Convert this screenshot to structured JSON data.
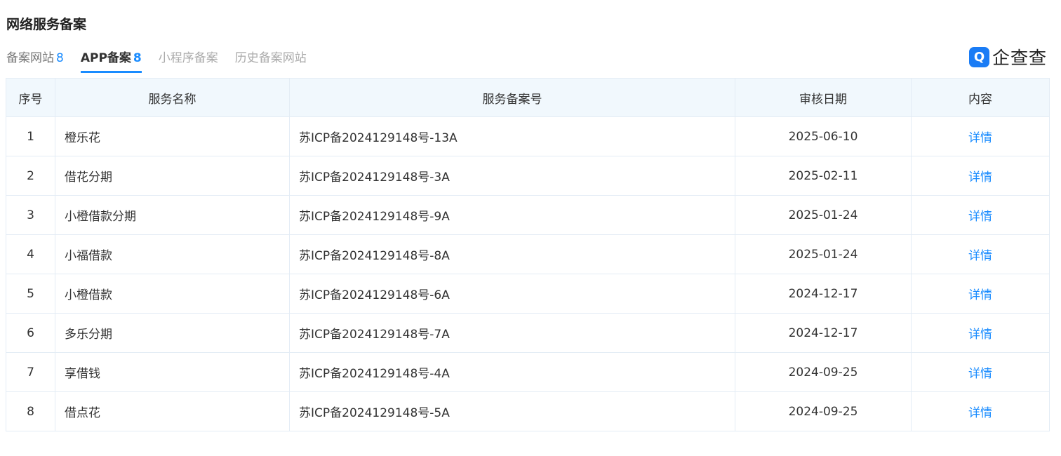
{
  "title": "网络服务备案",
  "tabs": [
    {
      "label": "备案网站",
      "count": "8"
    },
    {
      "label": "APP备案",
      "count": "8"
    },
    {
      "label": "小程序备案"
    },
    {
      "label": "历史备案网站"
    }
  ],
  "logo": {
    "text": "企查查",
    "color": "#1a7cf5"
  },
  "table": {
    "headers": [
      "序号",
      "服务名称",
      "服务备案号",
      "审核日期",
      "内容"
    ],
    "rows": [
      {
        "no": "1",
        "name": "橙乐花",
        "record": "苏ICP备2024129148号-13A",
        "date": "2025-06-10",
        "link": "详情"
      },
      {
        "no": "2",
        "name": "借花分期",
        "record": "苏ICP备2024129148号-3A",
        "date": "2025-02-11",
        "link": "详情"
      },
      {
        "no": "3",
        "name": "小橙借款分期",
        "record": "苏ICP备2024129148号-9A",
        "date": "2025-01-24",
        "link": "详情"
      },
      {
        "no": "4",
        "name": "小福借款",
        "record": "苏ICP备2024129148号-8A",
        "date": "2025-01-24",
        "link": "详情"
      },
      {
        "no": "5",
        "name": "小橙借款",
        "record": "苏ICP备2024129148号-6A",
        "date": "2024-12-17",
        "link": "详情"
      },
      {
        "no": "6",
        "name": "多乐分期",
        "record": "苏ICP备2024129148号-7A",
        "date": "2024-12-17",
        "link": "详情"
      },
      {
        "no": "7",
        "name": "享借钱",
        "record": "苏ICP备2024129148号-4A",
        "date": "2024-09-25",
        "link": "详情"
      },
      {
        "no": "8",
        "name": "借点花",
        "record": "苏ICP备2024129148号-5A",
        "date": "2024-09-25",
        "link": "详情"
      }
    ]
  }
}
